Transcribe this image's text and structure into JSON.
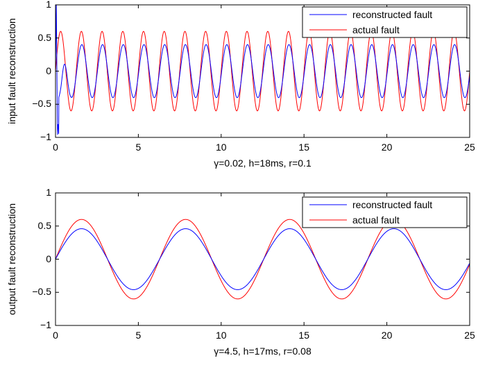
{
  "chart_data": [
    {
      "type": "line",
      "xlabel": "γ=0.02, h=18ms, r=0.1",
      "ylabel": "input fault reconstruction",
      "xlim": [
        0,
        25
      ],
      "ylim": [
        -1,
        1
      ],
      "xticks": [
        "0",
        "5",
        "10",
        "15",
        "20",
        "25"
      ],
      "yticks": [
        "−1",
        "−0.5",
        "0",
        "0.5",
        "1"
      ],
      "legend_position": "top-right",
      "grid": false,
      "series": [
        {
          "name": "reconstructed fault",
          "color": "#0000ff",
          "function": "sine with initial transient",
          "amplitude": 0.4,
          "period": 1.25,
          "phase_lag_rad": 0.15,
          "transient": {
            "peak": 1,
            "trough": -1,
            "duration": 1.0
          },
          "x_range": [
            0,
            25
          ]
        },
        {
          "name": "actual fault",
          "color": "#ff0000",
          "function": "sine",
          "amplitude": 0.6,
          "period": 1.25,
          "x_range": [
            0,
            25
          ]
        }
      ]
    },
    {
      "type": "line",
      "xlabel": "γ=4.5, h=17ms, r=0.08",
      "ylabel": "output fault reconstruction",
      "xlim": [
        0,
        25
      ],
      "ylim": [
        -1,
        1
      ],
      "xticks": [
        "0",
        "5",
        "10",
        "15",
        "20",
        "25"
      ],
      "yticks": [
        "−1",
        "−0.5",
        "0",
        "0.5",
        "1"
      ],
      "legend_position": "top-right",
      "grid": false,
      "series": [
        {
          "name": "reconstructed fault",
          "color": "#0000ff",
          "function": "sine",
          "amplitude": 0.46,
          "period": 6.283,
          "x_range": [
            0,
            25
          ]
        },
        {
          "name": "actual fault",
          "color": "#ff0000",
          "function": "sine",
          "amplitude": 0.6,
          "period": 6.283,
          "x_range": [
            0,
            25
          ]
        }
      ]
    }
  ]
}
